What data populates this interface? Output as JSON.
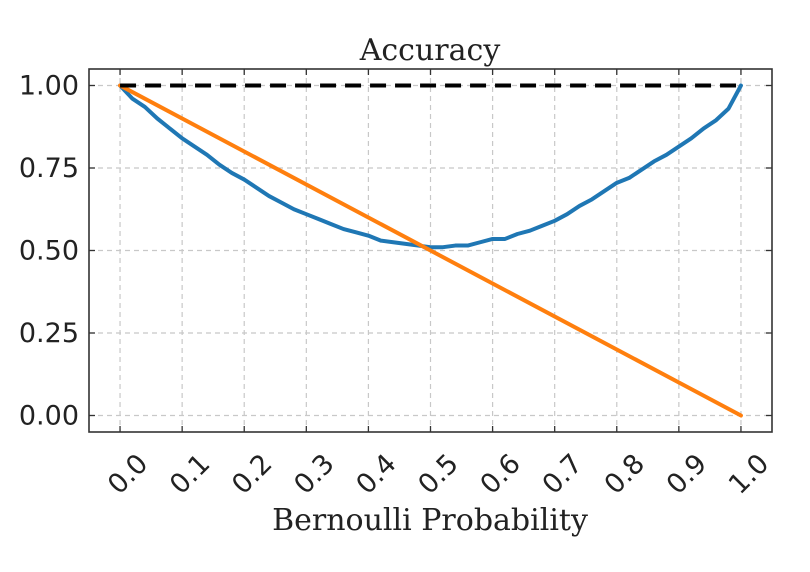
{
  "chart_data": {
    "type": "line",
    "title": "Accuracy",
    "xlabel": "Bernoulli Probability",
    "ylabel": "",
    "xlim": [
      -0.05,
      1.05
    ],
    "ylim": [
      -0.05,
      1.05
    ],
    "xticks": [
      "0.0",
      "0.1",
      "0.2",
      "0.3",
      "0.4",
      "0.5",
      "0.6",
      "0.7",
      "0.8",
      "0.9",
      "1.0"
    ],
    "yticks": [
      "0.00",
      "0.25",
      "0.50",
      "0.75",
      "1.00"
    ],
    "grid": true,
    "legend": "none",
    "series": [
      {
        "color": "#000000",
        "style": "dashed",
        "x": [
          0.0,
          1.0
        ],
        "y": [
          1.0,
          1.0
        ]
      },
      {
        "color": "#ff7f0e",
        "style": "solid",
        "x": [
          0.0,
          1.0
        ],
        "y": [
          1.0,
          0.0
        ]
      },
      {
        "color": "#1f77b4",
        "style": "solid",
        "x": [
          0.0,
          0.02,
          0.04,
          0.06,
          0.08,
          0.1,
          0.12,
          0.14,
          0.16,
          0.18,
          0.2,
          0.22,
          0.24,
          0.26,
          0.28,
          0.3,
          0.32,
          0.34,
          0.36,
          0.38,
          0.4,
          0.42,
          0.44,
          0.46,
          0.48,
          0.5,
          0.52,
          0.54,
          0.56,
          0.58,
          0.6,
          0.62,
          0.64,
          0.66,
          0.68,
          0.7,
          0.72,
          0.74,
          0.76,
          0.78,
          0.8,
          0.82,
          0.84,
          0.86,
          0.88,
          0.9,
          0.92,
          0.94,
          0.96,
          0.98,
          1.0
        ],
        "y": [
          1.0,
          0.96,
          0.935,
          0.9,
          0.87,
          0.84,
          0.815,
          0.79,
          0.76,
          0.735,
          0.715,
          0.69,
          0.665,
          0.645,
          0.625,
          0.61,
          0.595,
          0.58,
          0.565,
          0.555,
          0.545,
          0.53,
          0.525,
          0.52,
          0.515,
          0.51,
          0.51,
          0.515,
          0.515,
          0.525,
          0.535,
          0.535,
          0.55,
          0.56,
          0.575,
          0.59,
          0.61,
          0.635,
          0.655,
          0.68,
          0.705,
          0.72,
          0.745,
          0.77,
          0.79,
          0.815,
          0.84,
          0.87,
          0.895,
          0.93,
          1.0
        ]
      }
    ]
  }
}
